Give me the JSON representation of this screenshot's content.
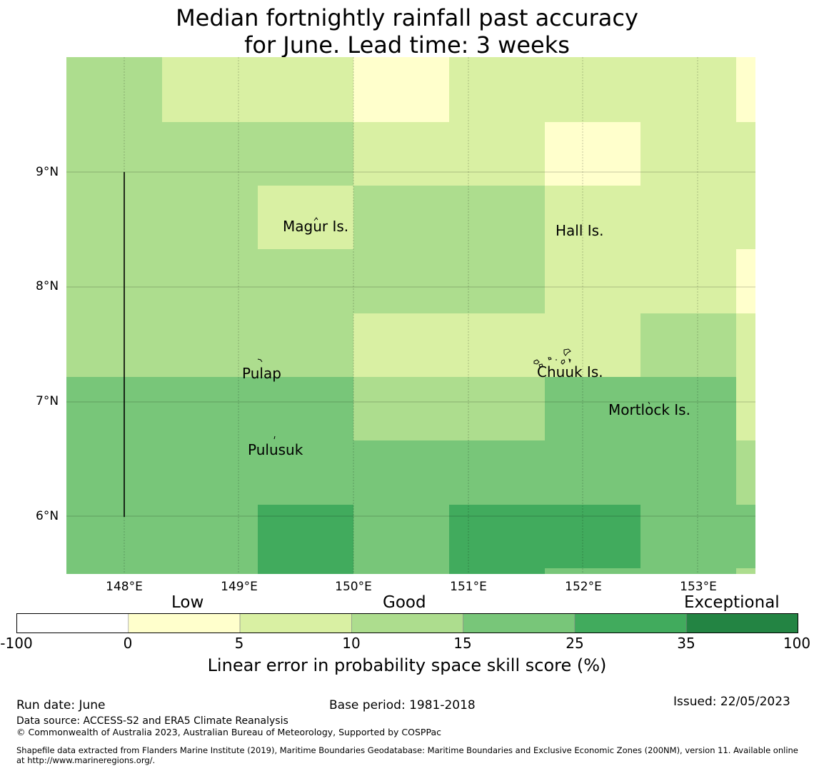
{
  "title": {
    "line1": "Median fortnightly rainfall past accuracy",
    "line2": "for June. Lead time: 3 weeks"
  },
  "map": {
    "lat_ticks": [
      "9°N",
      "8°N",
      "7°N",
      "6°N"
    ],
    "lon_ticks": [
      "148°E",
      "149°E",
      "150°E",
      "151°E",
      "152°E",
      "153°E"
    ],
    "places": [
      "Magur Is.",
      "Hall Is.",
      "Pulap",
      "Chuuk Is.",
      "Mortlock Is.",
      "Pulusuk"
    ]
  },
  "colorbar": {
    "categories": [
      "Low",
      "Good",
      "Exceptional"
    ],
    "ticks": [
      "-100",
      "0",
      "5",
      "10",
      "15",
      "25",
      "35",
      "100"
    ],
    "colors": [
      "#ffffff",
      "#ffffcc",
      "#d9f0a3",
      "#addd8e",
      "#78c679",
      "#41ab5d",
      "#238443"
    ],
    "label": "Linear error in probability space skill score (%)"
  },
  "footer": {
    "run_date": "Run date: June",
    "base_period": "Base period: 1981-2018",
    "issued": "Issued: 22/05/2023",
    "data_source": "Data source: ACCESS-S2 and ERA5 Climate Reanalysis",
    "copyright": "© Commonwealth of Australia 2023, Australian Bureau of Meteorology, Supported by COSPPac",
    "shapefile": "Shapefile data extracted from Flanders Marine Institute (2019), Maritime Boundaries Geodatabase: Maritime Boundaries and Exclusive Economic Zones (200NM), version 11. Available online at http://www.marineregions.org/."
  }
}
